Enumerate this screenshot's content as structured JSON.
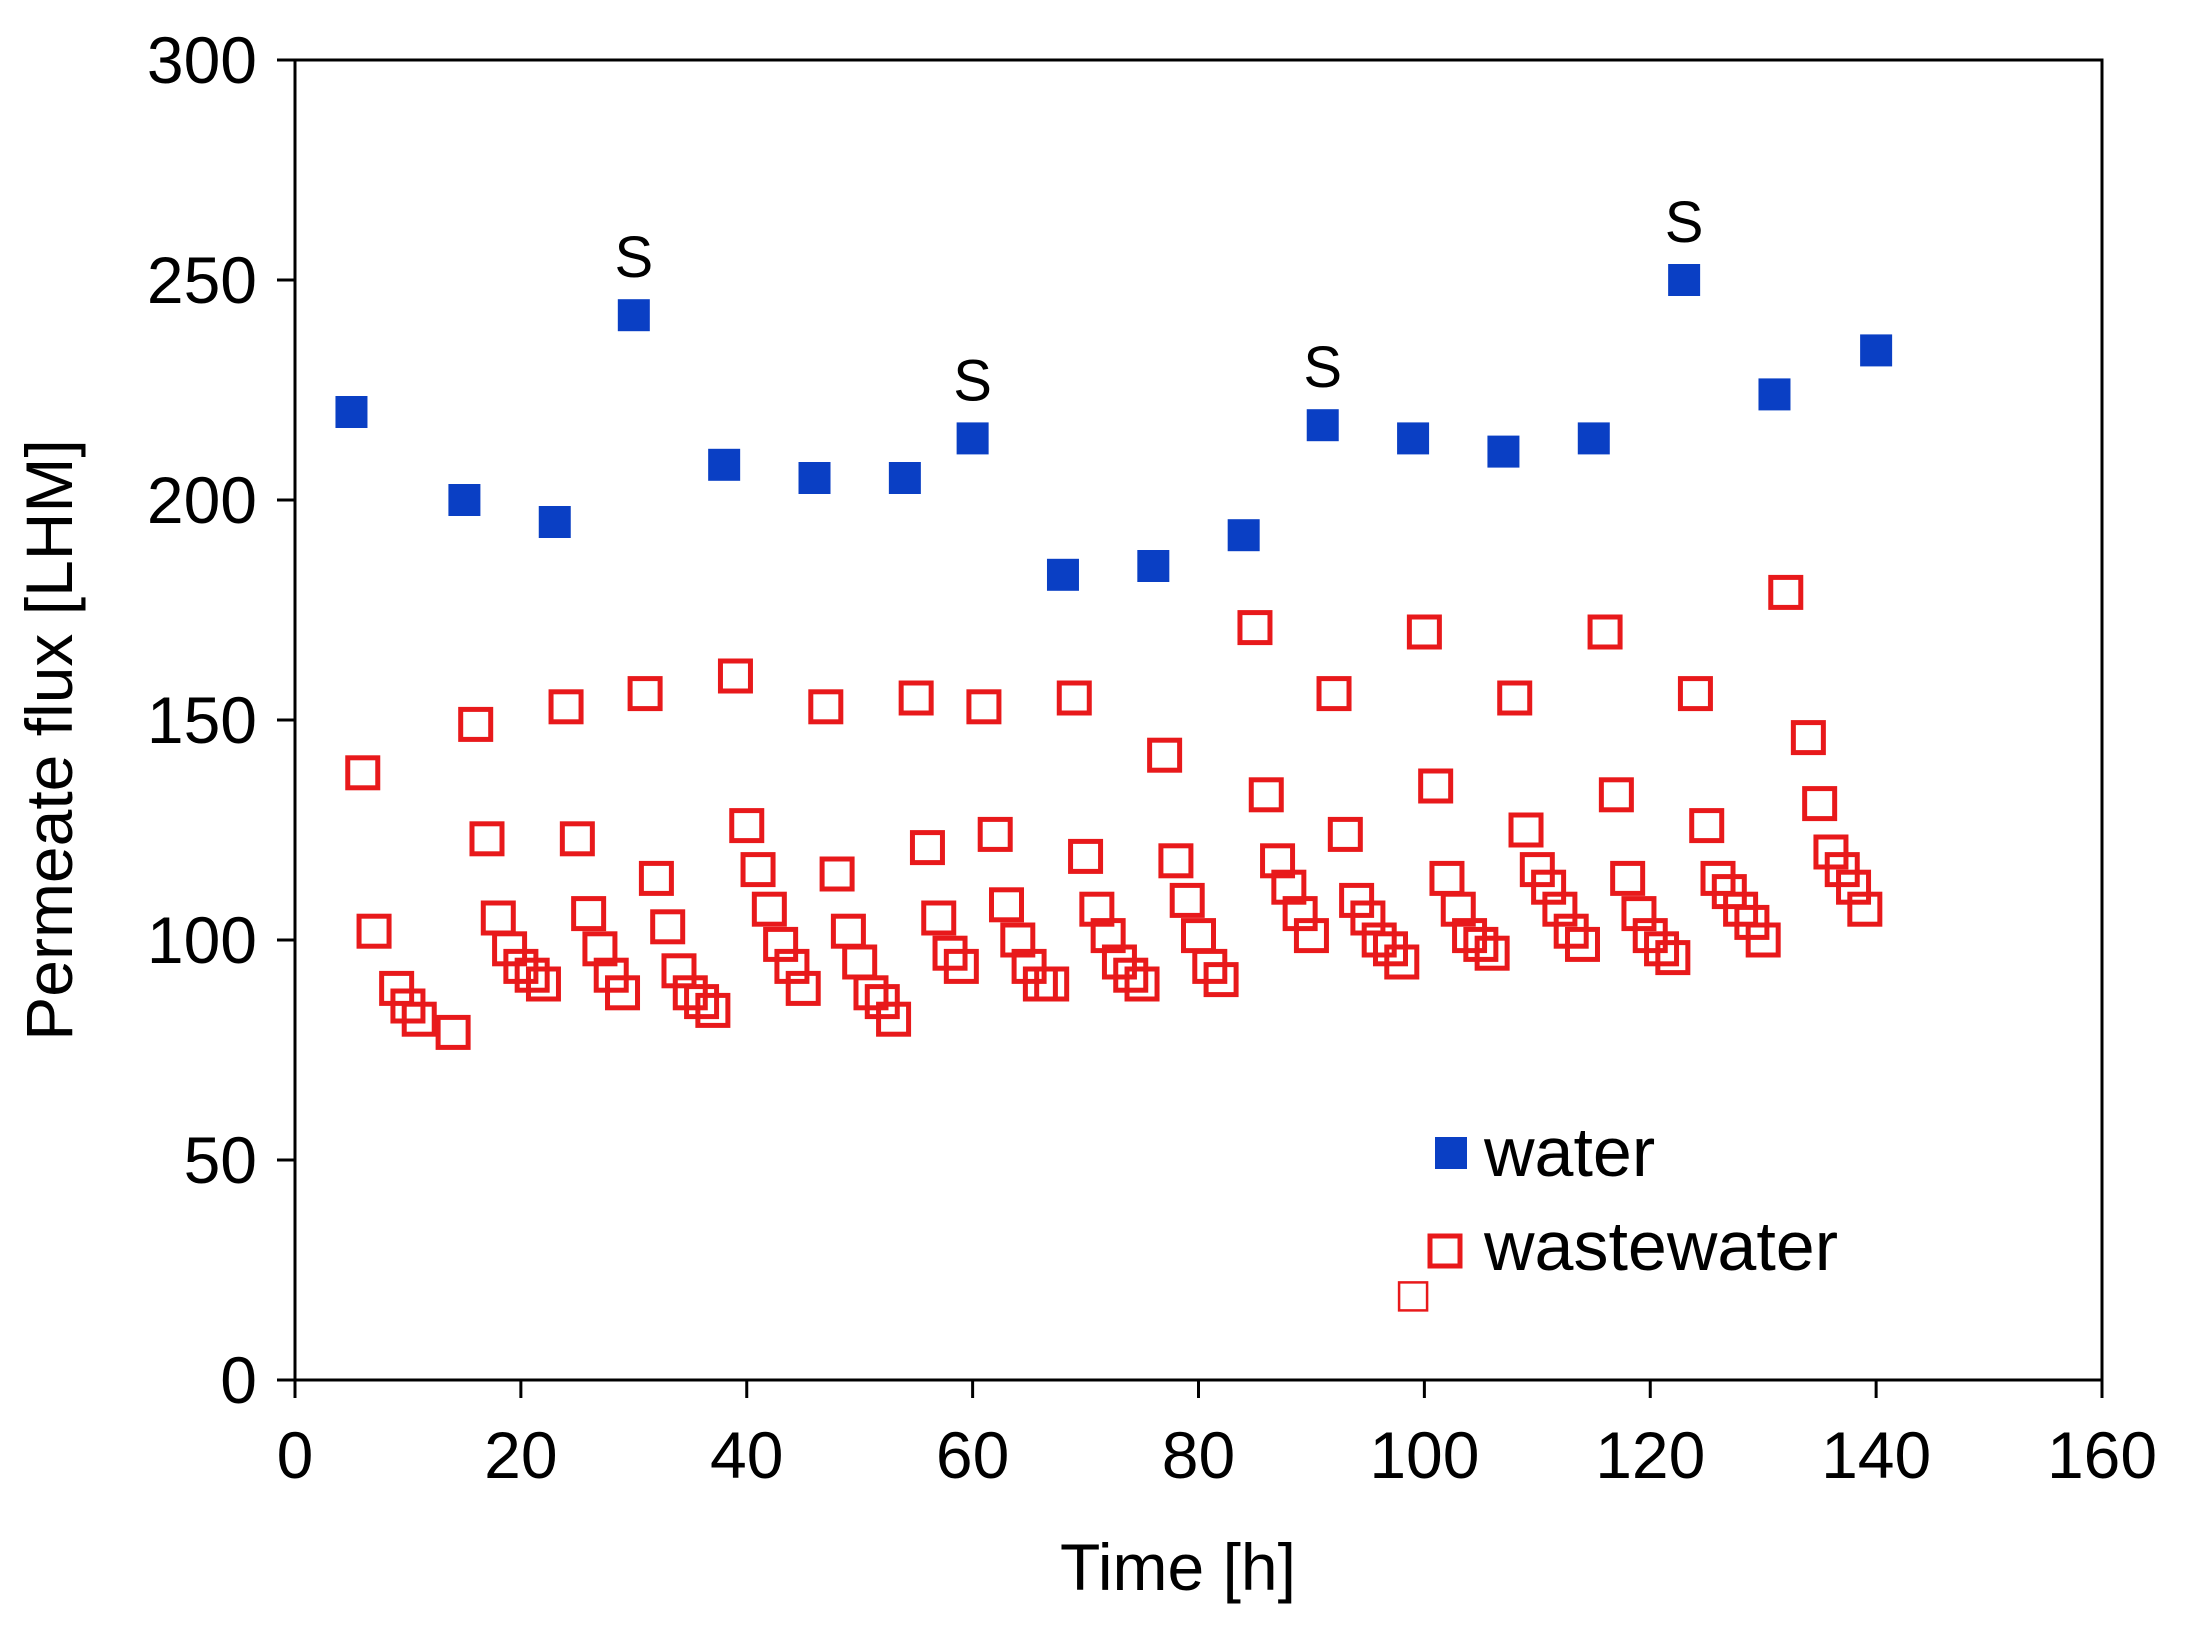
{
  "chart_data": {
    "type": "scatter",
    "xlabel": "Time [h]",
    "ylabel": "Permeate flux [LHM]",
    "xlim": [
      0,
      160
    ],
    "ylim": [
      0,
      300
    ],
    "xticks": [
      0,
      20,
      40,
      60,
      80,
      100,
      120,
      140,
      160
    ],
    "yticks": [
      0,
      50,
      100,
      150,
      200,
      250,
      300
    ],
    "grid": false,
    "legend_position": "bottom-right",
    "series": [
      {
        "name": "water",
        "marker": "filled-square",
        "color": "#0a3fc4",
        "points": [
          [
            5,
            220
          ],
          [
            15,
            200
          ],
          [
            23,
            195
          ],
          [
            30,
            242
          ],
          [
            38,
            208
          ],
          [
            46,
            205
          ],
          [
            54,
            205
          ],
          [
            60,
            214
          ],
          [
            68,
            183
          ],
          [
            76,
            185
          ],
          [
            84,
            192
          ],
          [
            91,
            217
          ],
          [
            99,
            214
          ],
          [
            107,
            211
          ],
          [
            115,
            214
          ],
          [
            123,
            250
          ],
          [
            131,
            224
          ],
          [
            140,
            234
          ]
        ]
      },
      {
        "name": "wastewater",
        "marker": "open-square",
        "color": "#e8191b",
        "points": [
          [
            6,
            138
          ],
          [
            7,
            102
          ],
          [
            9,
            89
          ],
          [
            10,
            85
          ],
          [
            11,
            82
          ],
          [
            14,
            79
          ],
          [
            16,
            149
          ],
          [
            17,
            123
          ],
          [
            18,
            105
          ],
          [
            19,
            98
          ],
          [
            20,
            94
          ],
          [
            21,
            92
          ],
          [
            22,
            90
          ],
          [
            24,
            153
          ],
          [
            25,
            123
          ],
          [
            26,
            106
          ],
          [
            27,
            98
          ],
          [
            28,
            92
          ],
          [
            29,
            88
          ],
          [
            31,
            156
          ],
          [
            32,
            114
          ],
          [
            33,
            103
          ],
          [
            34,
            93
          ],
          [
            35,
            88
          ],
          [
            36,
            86
          ],
          [
            37,
            84
          ],
          [
            39,
            160
          ],
          [
            40,
            126
          ],
          [
            41,
            116
          ],
          [
            42,
            107
          ],
          [
            43,
            99
          ],
          [
            44,
            94
          ],
          [
            45,
            89
          ],
          [
            47,
            153
          ],
          [
            48,
            115
          ],
          [
            49,
            102
          ],
          [
            50,
            95
          ],
          [
            51,
            88
          ],
          [
            52,
            86
          ],
          [
            53,
            82
          ],
          [
            55,
            155
          ],
          [
            56,
            121
          ],
          [
            57,
            105
          ],
          [
            58,
            97
          ],
          [
            59,
            94
          ],
          [
            61,
            153
          ],
          [
            62,
            124
          ],
          [
            63,
            108
          ],
          [
            64,
            100
          ],
          [
            65,
            94
          ],
          [
            66,
            90
          ],
          [
            67,
            90
          ],
          [
            69,
            155
          ],
          [
            70,
            119
          ],
          [
            71,
            107
          ],
          [
            72,
            101
          ],
          [
            73,
            95
          ],
          [
            74,
            92
          ],
          [
            75,
            90
          ],
          [
            77,
            142
          ],
          [
            78,
            118
          ],
          [
            79,
            109
          ],
          [
            80,
            101
          ],
          [
            81,
            94
          ],
          [
            82,
            91
          ],
          [
            85,
            171
          ],
          [
            86,
            133
          ],
          [
            87,
            118
          ],
          [
            88,
            112
          ],
          [
            89,
            106
          ],
          [
            90,
            101
          ],
          [
            92,
            156
          ],
          [
            93,
            124
          ],
          [
            94,
            109
          ],
          [
            95,
            105
          ],
          [
            96,
            100
          ],
          [
            97,
            98
          ],
          [
            98,
            95
          ],
          [
            100,
            170
          ],
          [
            101,
            135
          ],
          [
            102,
            114
          ],
          [
            103,
            107
          ],
          [
            104,
            101
          ],
          [
            105,
            99
          ],
          [
            106,
            97
          ],
          [
            108,
            155
          ],
          [
            109,
            125
          ],
          [
            110,
            116
          ],
          [
            111,
            112
          ],
          [
            112,
            107
          ],
          [
            113,
            102
          ],
          [
            114,
            99
          ],
          [
            116,
            170
          ],
          [
            117,
            133
          ],
          [
            118,
            114
          ],
          [
            119,
            106
          ],
          [
            120,
            101
          ],
          [
            121,
            98
          ],
          [
            122,
            96
          ],
          [
            124,
            156
          ],
          [
            125,
            126
          ],
          [
            126,
            114
          ],
          [
            127,
            111
          ],
          [
            128,
            107
          ],
          [
            129,
            104
          ],
          [
            130,
            100
          ],
          [
            132,
            179
          ],
          [
            134,
            146
          ],
          [
            135,
            131
          ],
          [
            136,
            120
          ],
          [
            137,
            116
          ],
          [
            138,
            112
          ],
          [
            139,
            107
          ]
        ]
      }
    ],
    "annotations": [
      {
        "text": "S",
        "x": 30,
        "y": 242
      },
      {
        "text": "S",
        "x": 60,
        "y": 214
      },
      {
        "text": "S",
        "x": 91,
        "y": 217
      },
      {
        "text": "S",
        "x": 123,
        "y": 250
      }
    ],
    "stray_marker": {
      "x": 99,
      "y": 19,
      "color": "#e8191b"
    }
  }
}
